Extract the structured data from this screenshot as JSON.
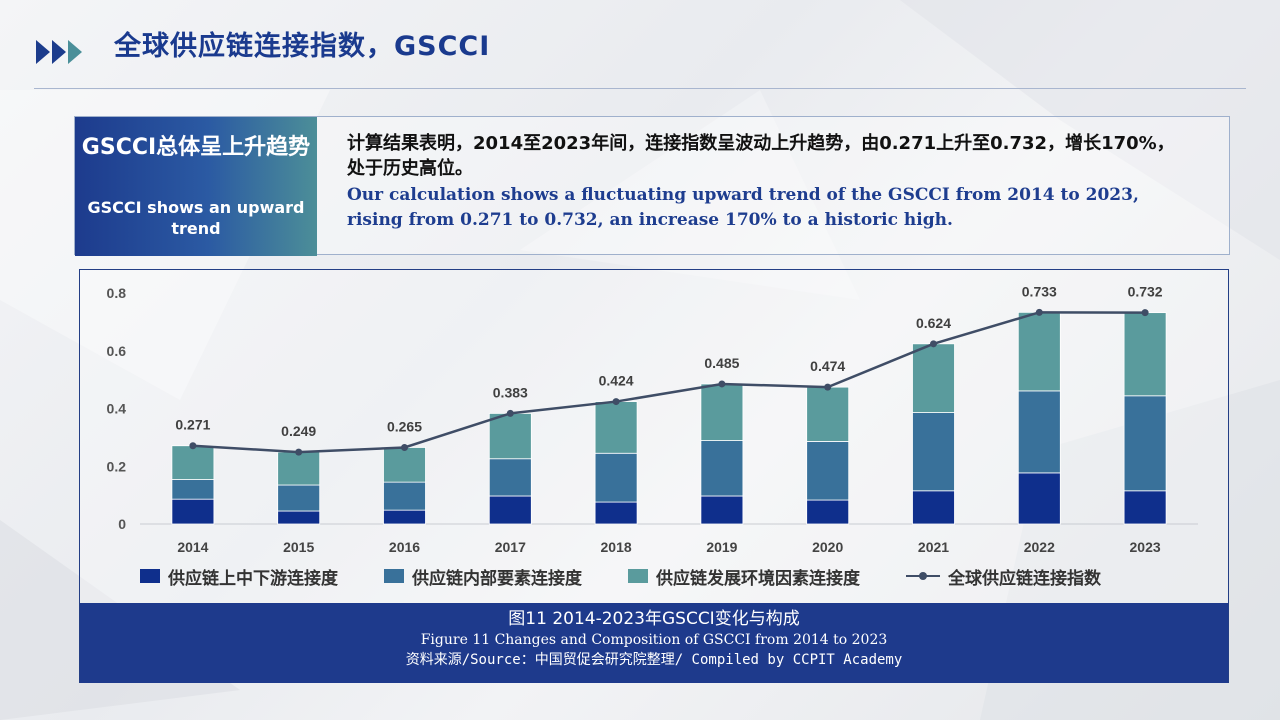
{
  "header": {
    "title": "全球供应链连接指数，GSCCI"
  },
  "summary": {
    "left_zh": "GSCCI总体呈上升趋势",
    "left_en": "GSCCI shows an upward trend",
    "right_zh": "计算结果表明，2014至2023年间，连接指数呈波动上升趋势，由0.271上升至0.732，增长170%，处于历史高位。",
    "right_en": "Our calculation shows a fluctuating upward trend of the GSCCI from 2014 to 2023, rising from 0.271 to 0.732, an increase 170% to a historic high."
  },
  "caption": {
    "line1": "图11 2014-2023年GSCCI变化与构成",
    "line2": "Figure 11 Changes and Composition of GSCCI from 2014 to 2023",
    "line3": "资料来源/Source：中国贸促会研究院整理/ Compiled by CCPIT Academy"
  },
  "colors": {
    "upstream": "#0f2f8c",
    "internal": "#39719a",
    "environment": "#5a9b9d",
    "index_line": "#3f4d66",
    "title": "#1a3a8e"
  },
  "chart_data": {
    "type": "bar",
    "stacked": true,
    "categories": [
      "2014",
      "2015",
      "2016",
      "2017",
      "2018",
      "2019",
      "2020",
      "2021",
      "2022",
      "2023"
    ],
    "series": [
      {
        "name": "供应链上中下游连接度",
        "type": "bar",
        "values": [
          0.086,
          0.045,
          0.048,
          0.097,
          0.076,
          0.097,
          0.083,
          0.115,
          0.177,
          0.115
        ]
      },
      {
        "name": "供应链内部要素连接度",
        "type": "bar",
        "values": [
          0.068,
          0.09,
          0.097,
          0.129,
          0.169,
          0.192,
          0.203,
          0.271,
          0.284,
          0.329
        ]
      },
      {
        "name": "供应链发展环境因素连接度",
        "type": "bar",
        "values": [
          0.117,
          0.114,
          0.12,
          0.157,
          0.179,
          0.196,
          0.188,
          0.238,
          0.272,
          0.288
        ]
      },
      {
        "name": "全球供应链连接指数",
        "type": "line",
        "values": [
          0.271,
          0.249,
          0.265,
          0.383,
          0.424,
          0.485,
          0.474,
          0.624,
          0.733,
          0.732
        ]
      }
    ],
    "data_labels": [
      "0.271",
      "0.249",
      "0.265",
      "0.383",
      "0.424",
      "0.485",
      "0.474",
      "0.624",
      "0.733",
      "0.732"
    ],
    "y_ticks": [
      "0",
      "0.2",
      "0.4",
      "0.6",
      "0.8"
    ],
    "ylim": [
      0,
      0.8
    ],
    "grid": false,
    "legend_position": "bottom"
  }
}
